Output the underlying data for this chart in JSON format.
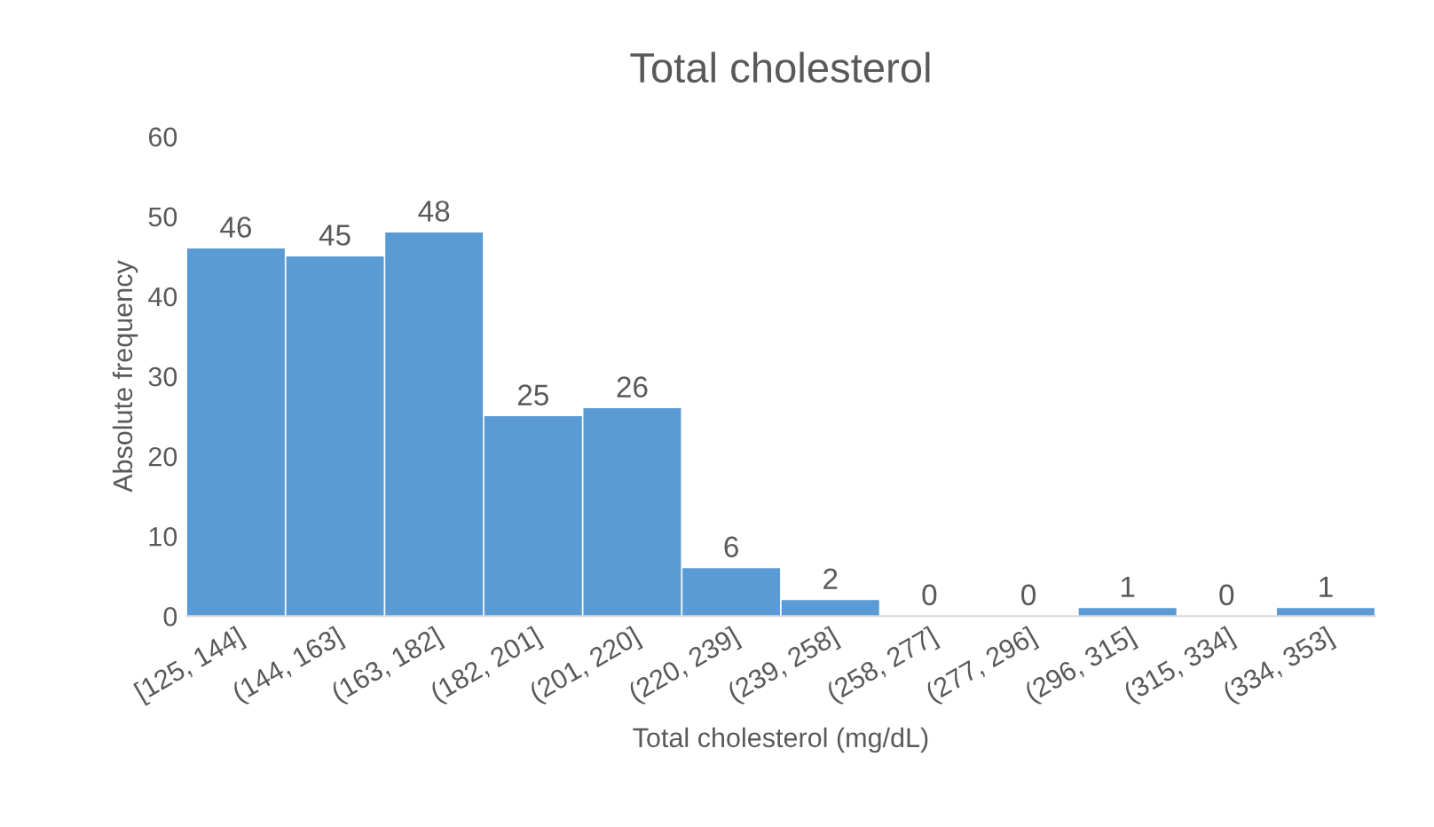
{
  "chart_data": {
    "type": "bar",
    "title": "Total cholesterol",
    "xlabel": "Total cholesterol (mg/dL)",
    "ylabel": "Absolute frequency",
    "categories": [
      "[125, 144]",
      "(144, 163]",
      "(163, 182]",
      "(182, 201]",
      "(201, 220]",
      "(220, 239]",
      "(239, 258]",
      "(258, 277]",
      "(277, 296]",
      "(296, 315]",
      "(315, 334]",
      "(334, 353]"
    ],
    "values": [
      46,
      45,
      48,
      25,
      26,
      6,
      2,
      0,
      0,
      1,
      0,
      1
    ],
    "color": "#5b9bd5",
    "ylim": [
      0,
      60
    ],
    "yticks": [
      0,
      10,
      20,
      30,
      40,
      50,
      60
    ],
    "grid": false,
    "data_labels": true
  }
}
